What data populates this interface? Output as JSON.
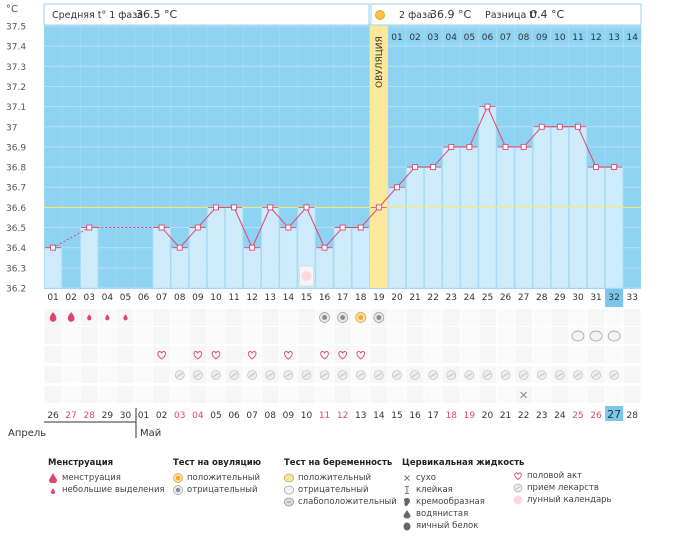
{
  "header": {
    "axis_unit": "°C",
    "phase1_label": "Средняя t° 1 фаза",
    "phase1_value": "36.5 °C",
    "phase2_label": "2 фаза",
    "phase2_value": "36.9 °C",
    "diff_label": "Разница t°",
    "diff_value": "0.4 °C"
  },
  "ovulation_label": "ОВУЛЯЦИЯ",
  "chart_data": {
    "type": "line",
    "ylim": [
      36.2,
      37.5
    ],
    "yticks": [
      "36.2",
      "36.3",
      "36.4",
      "36.5",
      "36.6",
      "36.7",
      "36.8",
      "36.9",
      "37",
      "37.1",
      "37.2",
      "37.3",
      "37.4",
      "37.5"
    ],
    "cycle_days": [
      "01",
      "02",
      "03",
      "04",
      "05",
      "06",
      "07",
      "08",
      "09",
      "10",
      "11",
      "12",
      "13",
      "14",
      "15",
      "16",
      "17",
      "18",
      "19",
      "20",
      "21",
      "22",
      "23",
      "24",
      "25",
      "26",
      "27",
      "28",
      "29",
      "30",
      "31",
      "32",
      "33"
    ],
    "top_days": [
      "01",
      "02",
      "03",
      "04",
      "05",
      "06",
      "07",
      "08",
      "09",
      "10",
      "11",
      "12",
      "13",
      "14"
    ],
    "temperatures": [
      36.4,
      null,
      36.5,
      null,
      null,
      null,
      36.5,
      36.4,
      36.5,
      36.6,
      36.6,
      36.4,
      36.6,
      36.5,
      36.6,
      36.4,
      36.5,
      36.5,
      36.6,
      36.7,
      36.8,
      36.8,
      36.9,
      36.9,
      37.1,
      36.9,
      36.9,
      37.0,
      37.0,
      37.0,
      36.8,
      36.8,
      null
    ],
    "coverline": 36.6,
    "ovulation_day": 19,
    "current_day": 32,
    "calendar_dates": [
      "26",
      "27",
      "28",
      "29",
      "30",
      "01",
      "02",
      "03",
      "04",
      "05",
      "06",
      "07",
      "08",
      "09",
      "10",
      "11",
      "12",
      "13",
      "14",
      "15",
      "16",
      "17",
      "18",
      "19",
      "20",
      "21",
      "22",
      "23",
      "24",
      "25",
      "26",
      "27",
      "28"
    ],
    "red_date_indices": [
      1,
      2,
      7,
      8,
      15,
      16,
      22,
      23,
      29,
      30
    ],
    "month_left": "Апрель",
    "month_right": "Май",
    "moon_day": 15,
    "menstruation": [
      [
        1,
        "large"
      ],
      [
        2,
        "large"
      ],
      [
        3,
        "small"
      ],
      [
        4,
        "small"
      ],
      [
        5,
        "small"
      ]
    ],
    "ovulation_tests": [
      [
        16,
        "negative"
      ],
      [
        17,
        "negative"
      ],
      [
        18,
        "positive"
      ],
      [
        19,
        "negative"
      ]
    ],
    "pregnancy_tests": [
      30,
      31,
      32
    ],
    "intercourse_days": [
      7,
      9,
      10,
      12,
      14,
      16,
      17,
      18
    ],
    "medication_days": [
      8,
      9,
      10,
      11,
      12,
      13,
      14,
      15,
      16,
      17,
      18,
      19,
      20,
      21,
      22,
      23,
      24,
      25,
      26,
      27,
      28,
      29,
      30,
      31,
      32
    ],
    "cervical_dry_days": [
      27
    ]
  },
  "legend": {
    "menstruation": {
      "title": "Менструация",
      "items": [
        "менструация",
        "небольшие выделения"
      ]
    },
    "ovulation_test": {
      "title": "Тест на овуляцию",
      "items": [
        "положительный",
        "отрицательный"
      ]
    },
    "pregnancy_test": {
      "title": "Тест на беременность",
      "items": [
        "положительный",
        "отрицательный",
        "слабоположительный"
      ]
    },
    "cervical": {
      "title": "Цервикальная жидкость",
      "items": [
        "сухо",
        "клейкая",
        "кремообразная",
        "водянистая",
        "яичный белок"
      ]
    },
    "other": {
      "items": [
        "половой акт",
        "прием лекарств",
        "лунный календарь"
      ]
    }
  },
  "colors": {
    "sky": "#8fd3f3",
    "bar": "#cdebfb",
    "ovulation": "#fce89a",
    "line": "#e0456e",
    "coverline": "#ffe860",
    "today": "#79c8ec"
  }
}
